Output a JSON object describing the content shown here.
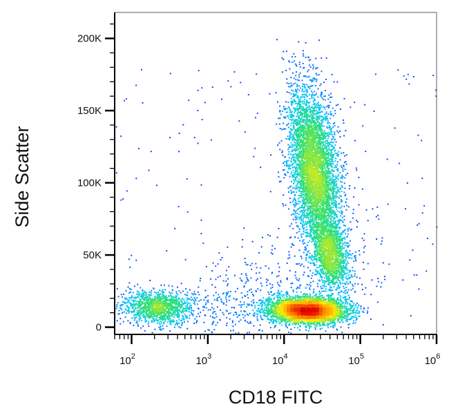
{
  "chart_data": {
    "type": "scatter",
    "xlabel": "CD18 FITC",
    "ylabel": "Side Scatter",
    "x_scale": "log",
    "xlim": [
      60,
      1000000
    ],
    "ylim": [
      -5000,
      218000
    ],
    "x_ticks": [
      {
        "value": 100,
        "base": "10",
        "exp": "2"
      },
      {
        "value": 1000,
        "base": "10",
        "exp": "3"
      },
      {
        "value": 10000,
        "base": "10",
        "exp": "4"
      },
      {
        "value": 100000,
        "base": "10",
        "exp": "5"
      },
      {
        "value": 1000000,
        "base": "10",
        "exp": "6"
      }
    ],
    "y_ticks": [
      {
        "value": 0,
        "label": "0"
      },
      {
        "value": 50000,
        "label": "50K"
      },
      {
        "value": 100000,
        "label": "100K"
      },
      {
        "value": 150000,
        "label": "150K"
      },
      {
        "value": 200000,
        "label": "200K"
      }
    ],
    "grid": false,
    "legend": "none",
    "colormap": [
      "#1a1aff",
      "#00c8ff",
      "#30e070",
      "#ffee00",
      "#ff7f00",
      "#e00000"
    ],
    "populations": [
      {
        "log10_x_center": 2.35,
        "y_center": 14000,
        "count": 1300
      },
      {
        "log10_x_center": 4.3,
        "y_center": 12000,
        "count": 4500
      },
      {
        "log10_x_center": 4.38,
        "y_center": 110000,
        "count": 5000
      },
      {
        "log10_x_center": 4.6,
        "y_center": 50000,
        "count": 1500
      }
    ]
  }
}
